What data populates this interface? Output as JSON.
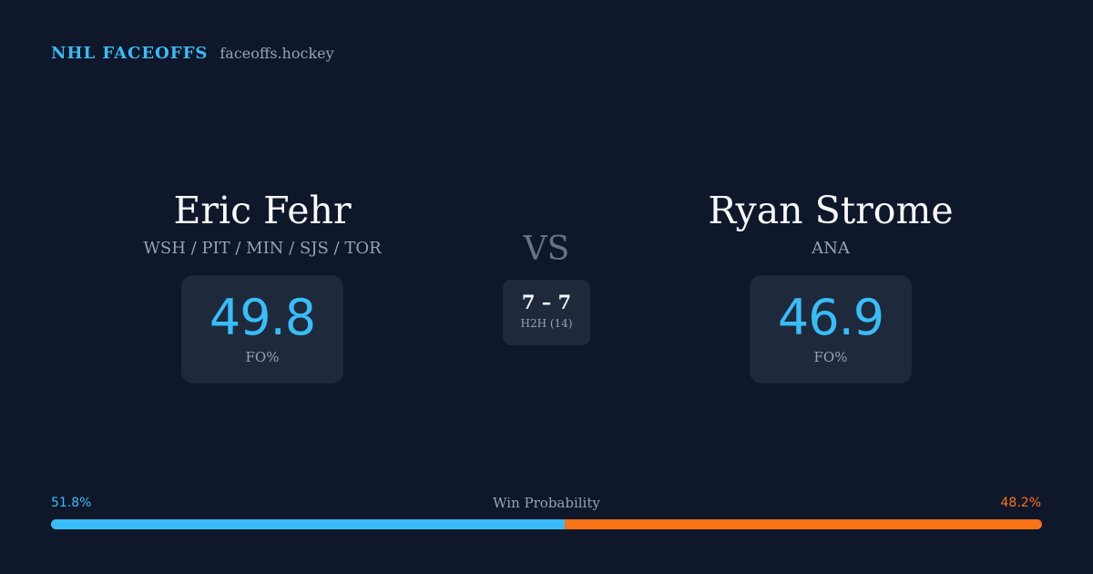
{
  "brand": {
    "name": "NHL FACEOFFS",
    "url": "faceoffs.hockey"
  },
  "player_left": {
    "name": "Eric Fehr",
    "teams": "WSH / PIT / MIN / SJS / TOR",
    "fo_value": "49.8",
    "fo_label": "FO%"
  },
  "player_right": {
    "name": "Ryan Strome",
    "teams": "ANA",
    "fo_value": "46.9",
    "fo_label": "FO%"
  },
  "versus": {
    "label": "VS",
    "record": "7 – 7",
    "h2h_label": "H2H (14)"
  },
  "win_probability": {
    "title": "Win Probability",
    "left_label": "51.8%",
    "right_label": "48.2%",
    "left_fraction": 0.518,
    "right_fraction": 0.482,
    "left_color": "#38bdf8",
    "right_color": "#f97316"
  },
  "colors": {
    "background": "#0f172a",
    "card": "#1e293b",
    "accent": "#38bdf8",
    "accent_secondary": "#f97316",
    "muted_text": "#94a3b8",
    "primary_text": "#f8fafc"
  }
}
